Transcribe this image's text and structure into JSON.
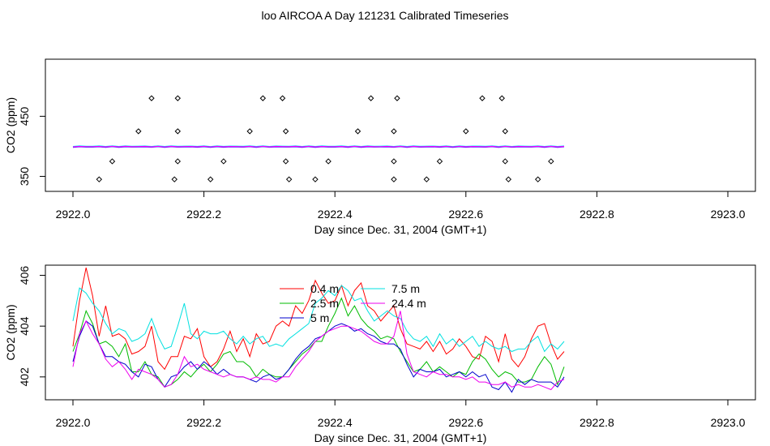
{
  "title": "loo AIRCOA A  Day 121231  Calibrated Timeseries",
  "chart_data": [
    {
      "type": "scatter",
      "title": "loo AIRCOA A  Day 121231  Calibrated Timeseries",
      "xlabel": "Day since Dec. 31, 2004 (GMT+1)",
      "ylabel": "CO2 (ppm)",
      "xlim": [
        2922.0,
        2923.0
      ],
      "ylim": [
        325,
        545
      ],
      "xticks": [
        "2922.0",
        "2922.2",
        "2922.4",
        "2922.6",
        "2922.8",
        "2923.0"
      ],
      "yticks": [
        "350",
        "450"
      ],
      "points": [
        [
          2922.04,
          345
        ],
        [
          2922.06,
          375
        ],
        [
          2922.1,
          425
        ],
        [
          2922.12,
          480
        ],
        [
          2922.155,
          345
        ],
        [
          2922.16,
          375
        ],
        [
          2922.16,
          425
        ],
        [
          2922.16,
          480
        ],
        [
          2922.21,
          345
        ],
        [
          2922.23,
          375
        ],
        [
          2922.27,
          425
        ],
        [
          2922.29,
          480
        ],
        [
          2922.32,
          480
        ],
        [
          2922.325,
          425
        ],
        [
          2922.325,
          375
        ],
        [
          2922.33,
          345
        ],
        [
          2922.37,
          345
        ],
        [
          2922.39,
          375
        ],
        [
          2922.435,
          425
        ],
        [
          2922.455,
          480
        ],
        [
          2922.49,
          345
        ],
        [
          2922.49,
          375
        ],
        [
          2922.49,
          425
        ],
        [
          2922.495,
          480
        ],
        [
          2922.54,
          345
        ],
        [
          2922.56,
          375
        ],
        [
          2922.6,
          425
        ],
        [
          2922.625,
          480
        ],
        [
          2922.655,
          480
        ],
        [
          2922.66,
          425
        ],
        [
          2922.66,
          375
        ],
        [
          2922.665,
          345
        ],
        [
          2922.71,
          345
        ],
        [
          2922.73,
          375
        ]
      ],
      "lines": [
        {
          "name": "red",
          "color": "#ff0000",
          "y": 399.8
        },
        {
          "name": "green",
          "color": "#00cc00",
          "y": 399.4
        },
        {
          "name": "blue",
          "color": "#0000ff",
          "y": 399.0
        },
        {
          "name": "cyan",
          "color": "#00ffff",
          "y": 400.3
        },
        {
          "name": "magenta",
          "color": "#ff00ff",
          "y": 399.6
        }
      ],
      "line_x_range": [
        2922.0,
        2922.75
      ]
    },
    {
      "type": "line",
      "xlabel": "Day since Dec. 31, 2004 (GMT+1)",
      "ylabel": "CO2 (ppm)",
      "xlim": [
        2922.0,
        2923.0
      ],
      "ylim": [
        401.1,
        406.4
      ],
      "xticks": [
        "2922.0",
        "2922.2",
        "2922.4",
        "2922.6",
        "2922.8",
        "2923.0"
      ],
      "yticks": [
        "402",
        "404",
        "406"
      ],
      "x_start": 2922.0,
      "x_step": 0.01,
      "series": [
        {
          "name": "0.4 m",
          "color": "#ff0000",
          "values": [
            403.2,
            405.0,
            406.3,
            405.2,
            403.6,
            404.8,
            403.6,
            403.7,
            403.5,
            402.9,
            403.0,
            403.2,
            404.0,
            402.6,
            402.3,
            402.8,
            402.8,
            403.6,
            403.5,
            403.9,
            402.8,
            402.4,
            402.6,
            403.1,
            403.8,
            403.0,
            403.5,
            402.8,
            403.7,
            403.3,
            403.4,
            404.0,
            404.2,
            404.0,
            404.8,
            404.5,
            405.0,
            405.8,
            405.3,
            404.9,
            405.0,
            405.6,
            404.8,
            405.4,
            405.7,
            404.8,
            404.6,
            404.2,
            404.5,
            404.8,
            403.9,
            403.3,
            403.2,
            403.1,
            403.4,
            403.0,
            403.4,
            402.9,
            403.1,
            403.5,
            403.2,
            402.8,
            402.7,
            403.6,
            403.4,
            402.6,
            403.7,
            402.7,
            402.4,
            402.8,
            403.5,
            404.0,
            404.1,
            403.3,
            402.7,
            403.0
          ]
        },
        {
          "name": "2.5 m",
          "color": "#00bb00",
          "values": [
            403.0,
            403.7,
            404.6,
            404.1,
            403.3,
            403.4,
            403.2,
            402.8,
            403.3,
            402.2,
            402.2,
            402.6,
            402.1,
            402.0,
            401.6,
            401.7,
            401.9,
            402.2,
            402.0,
            402.3,
            402.5,
            402.2,
            402.5,
            402.9,
            403.0,
            402.6,
            402.6,
            402.4,
            402.0,
            402.3,
            402.1,
            402.0,
            402.0,
            402.3,
            402.6,
            402.9,
            403.1,
            403.4,
            403.4,
            404.0,
            404.5,
            405.1,
            404.4,
            404.8,
            404.3,
            404.0,
            403.8,
            403.5,
            403.6,
            403.5,
            403.0,
            402.6,
            402.2,
            402.3,
            402.6,
            402.2,
            402.4,
            402.2,
            402.0,
            402.2,
            402.1,
            402.6,
            402.9,
            402.7,
            402.3,
            402.0,
            402.2,
            402.1,
            401.8,
            401.8,
            401.9,
            402.4,
            402.8,
            402.5,
            401.7,
            402.4
          ]
        },
        {
          "name": "5 m",
          "color": "#0000cc",
          "values": [
            402.6,
            403.6,
            404.2,
            404.0,
            403.3,
            402.8,
            402.8,
            402.6,
            402.5,
            402.2,
            402.0,
            402.5,
            402.4,
            401.9,
            401.6,
            402.0,
            402.1,
            402.4,
            402.6,
            402.3,
            402.6,
            402.4,
            402.1,
            402.3,
            402.1,
            402.0,
            402.0,
            401.9,
            401.8,
            402.0,
            402.1,
            401.9,
            402.0,
            402.3,
            402.7,
            403.0,
            403.2,
            403.5,
            403.6,
            403.8,
            404.0,
            404.1,
            404.0,
            403.8,
            403.9,
            403.7,
            403.6,
            403.4,
            403.3,
            403.3,
            403.1,
            402.5,
            402.0,
            402.3,
            402.2,
            402.2,
            402.3,
            402.0,
            402.1,
            402.2,
            402.0,
            402.2,
            402.0,
            402.1,
            401.6,
            401.5,
            401.8,
            401.4,
            401.9,
            401.7,
            401.9,
            401.8,
            401.8,
            401.8,
            401.6,
            402.0
          ]
        },
        {
          "name": "7.5 m",
          "color": "#00e0e0",
          "values": [
            404.2,
            405.5,
            405.3,
            404.9,
            404.6,
            404.1,
            403.7,
            403.9,
            403.8,
            403.4,
            403.5,
            403.7,
            404.3,
            403.6,
            403.1,
            403.2,
            404.0,
            404.9,
            403.7,
            403.5,
            403.8,
            403.7,
            403.7,
            403.8,
            403.5,
            403.3,
            403.6,
            403.3,
            403.5,
            403.6,
            403.2,
            403.3,
            403.2,
            403.5,
            403.7,
            403.9,
            404.1,
            404.9,
            405.1,
            405.4,
            405.2,
            405.6,
            405.4,
            405.0,
            405.1,
            404.6,
            404.2,
            404.4,
            404.6,
            404.4,
            404.3,
            403.8,
            403.5,
            403.4,
            403.6,
            403.2,
            403.7,
            403.3,
            403.5,
            403.2,
            403.4,
            403.6,
            403.2,
            403.4,
            403.2,
            403.1,
            403.2,
            403.0,
            403.1,
            403.1,
            403.4,
            403.6,
            403.0,
            403.3,
            403.1,
            403.4
          ]
        },
        {
          "name": "24.4 m",
          "color": "#ee00ee",
          "values": [
            402.4,
            403.7,
            404.2,
            403.7,
            403.3,
            402.7,
            402.4,
            402.6,
            402.3,
            401.9,
            402.3,
            402.2,
            402.1,
            401.9,
            401.6,
            401.7,
            402.1,
            402.8,
            402.4,
            402.5,
            402.3,
            402.2,
            402.1,
            402.0,
            402.1,
            402.0,
            402.0,
            401.9,
            402.0,
            401.9,
            401.9,
            401.8,
            402.0,
            402.0,
            402.4,
            402.7,
            403.0,
            403.4,
            403.6,
            403.8,
            403.9,
            404.0,
            404.0,
            403.9,
            403.8,
            403.6,
            403.4,
            403.3,
            403.3,
            403.6,
            404.6,
            402.9,
            402.2,
            402.1,
            402.0,
            402.2,
            402.1,
            402.1,
            402.0,
            402.0,
            401.9,
            402.0,
            401.8,
            401.8,
            401.7,
            401.7,
            401.8,
            401.6,
            401.7,
            401.6,
            401.6,
            401.7,
            401.6,
            401.5,
            401.8,
            401.9
          ]
        }
      ],
      "legend": {
        "placement": "top-center",
        "columns": [
          [
            "0.4 m",
            "2.5 m",
            "5 m"
          ],
          [
            "7.5 m",
            "24.4 m"
          ]
        ]
      }
    }
  ]
}
